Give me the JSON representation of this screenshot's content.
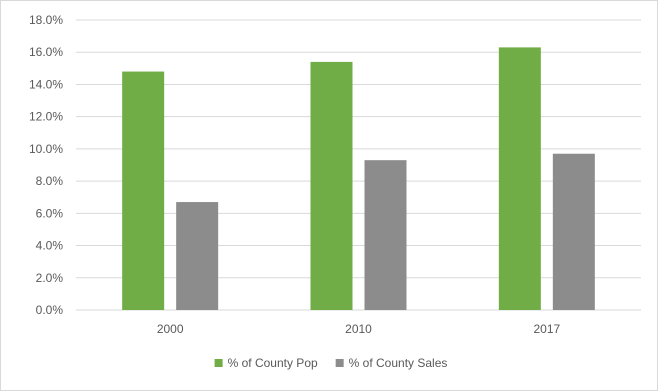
{
  "chart_data": {
    "type": "bar",
    "title": "",
    "xlabel": "",
    "ylabel": "",
    "categories": [
      "2000",
      "2010",
      "2017"
    ],
    "series": [
      {
        "name": "% of County Pop",
        "values": [
          14.8,
          15.4,
          16.3
        ],
        "color": "#70ad47"
      },
      {
        "name": "% of County Sales",
        "values": [
          6.7,
          9.3,
          9.7
        ],
        "color": "#8c8c8c"
      }
    ],
    "ylim": [
      0,
      18
    ],
    "y_ticks": [
      "0.0%",
      "2.0%",
      "4.0%",
      "6.0%",
      "8.0%",
      "10.0%",
      "12.0%",
      "14.0%",
      "16.0%",
      "18.0%"
    ],
    "grid": true,
    "gridline_color": "#d9d9d9",
    "legend_position": "bottom"
  }
}
